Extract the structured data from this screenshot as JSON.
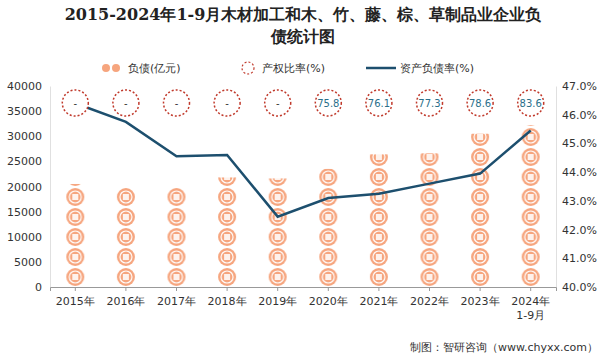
{
  "chart_data": {
    "type": "bar",
    "title": "2015-2024年1-9月木材加工和木、竹、藤、棕、草制品业企业负债统计图",
    "categories": [
      "2015年",
      "2016年",
      "2017年",
      "2018年",
      "2019年",
      "2020年",
      "2021年",
      "2022年",
      "2023年",
      "2024年1-9月"
    ],
    "series": [
      {
        "name": "负债(亿元)",
        "type": "bar",
        "color": "#f6a57e",
        "values": [
          20500,
          19800,
          19800,
          21800,
          21600,
          23500,
          26400,
          26600,
          30500,
          32200
        ]
      },
      {
        "name": "产权比率(%)",
        "type": "scatter",
        "marker": "circle",
        "line_style": "dotted",
        "color": "#c0392b",
        "data_labels": true,
        "values": [
          null,
          null,
          null,
          null,
          null,
          75.8,
          76.1,
          77.3,
          78.6,
          83.6
        ],
        "value_labels": [
          "-",
          "-",
          "-",
          "-",
          "-",
          "75.8",
          "76.1",
          "77.3",
          "78.6",
          "83.6"
        ]
      },
      {
        "name": "资产负债率(%)",
        "type": "line",
        "axis": "y2",
        "color": "#1d4f6e",
        "values": [
          46.4,
          45.75,
          44.55,
          44.6,
          42.45,
          43.1,
          43.25,
          43.6,
          43.95,
          45.45
        ]
      }
    ],
    "ylim": [
      0,
      40000
    ],
    "yticks": [
      0,
      5000,
      10000,
      15000,
      20000,
      25000,
      30000,
      35000,
      40000
    ],
    "y2lim": [
      40,
      47
    ],
    "y2ticks": [
      {
        "value": 40,
        "label": "40.0%"
      },
      {
        "value": 41,
        "label": "41.0%"
      },
      {
        "value": 42,
        "label": "42.0%"
      },
      {
        "value": 43,
        "label": "43.0%"
      },
      {
        "value": 44,
        "label": "44.0%"
      },
      {
        "value": 45,
        "label": "45.0%"
      },
      {
        "value": 46,
        "label": "46.0%"
      },
      {
        "value": 47,
        "label": "47.0%"
      }
    ],
    "grid": false,
    "legend": "top",
    "annotations": [
      "制图：智研咨询（www.chyxx.com）"
    ]
  }
}
